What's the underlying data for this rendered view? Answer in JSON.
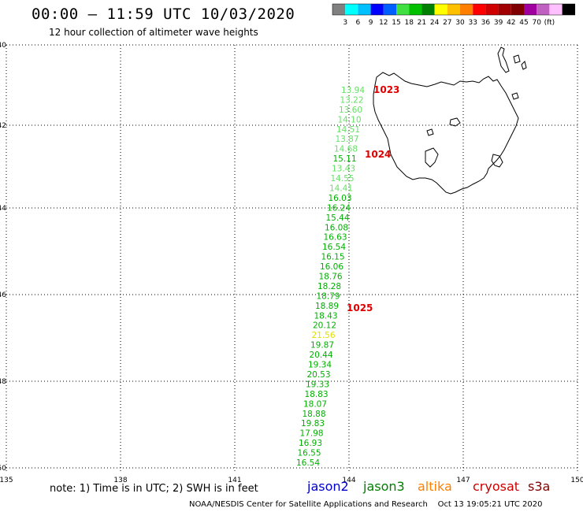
{
  "title": "00:00 – 11:59 UTC 10/03/2020",
  "subtitle": "12 hour collection of altimeter wave heights",
  "colorbar": {
    "colors": [
      "#808080",
      "#00ffff",
      "#00c0ff",
      "#0000ff",
      "#0060ff",
      "#40e040",
      "#00c000",
      "#008000",
      "#ffff00",
      "#ffc000",
      "#ff8000",
      "#ff0000",
      "#d00000",
      "#a00000",
      "#800000",
      "#a000a0",
      "#c060c0",
      "#ffc0ff",
      "#000000"
    ],
    "labels": [
      "3",
      "6",
      "9",
      "12",
      "15",
      "18",
      "21",
      "24",
      "27",
      "30",
      "33",
      "36",
      "39",
      "42",
      "45",
      "70",
      "(ft)"
    ]
  },
  "axes": {
    "lat_labels": [
      "-40",
      "-42",
      "-44",
      "-46",
      "-48",
      "-50"
    ],
    "lon_labels": [
      "135",
      "138",
      "141",
      "144",
      "147",
      "150"
    ]
  },
  "track": {
    "values": [
      "13.94",
      "13.22",
      "13.60",
      "14.10",
      "14.51",
      "13.87",
      "14.68",
      "15.11",
      "13.43",
      "14.55",
      "14.41",
      "16.03",
      "16.24",
      "15.44",
      "16.08",
      "16.63",
      "16.54",
      "16.15",
      "16.06",
      "18.76",
      "18.28",
      "18.79",
      "18.89",
      "18.43",
      "20.12",
      "21.56",
      "19.87",
      "20.44",
      "19.34",
      "20.53",
      "19.33",
      "18.83",
      "18.07",
      "18.88",
      "19.83",
      "17.98",
      "16.93",
      "16.55",
      "16.54"
    ],
    "colors": [
      "#66e066",
      "#66e066",
      "#66e066",
      "#66e066",
      "#66e066",
      "#66e066",
      "#66e066",
      "#00b000",
      "#66e066",
      "#66e066",
      "#66e066",
      "#00b000",
      "#00b000",
      "#00b000",
      "#00b000",
      "#00b000",
      "#00b000",
      "#00b000",
      "#00b000",
      "#00b000",
      "#00b000",
      "#00b000",
      "#00b000",
      "#00b000",
      "#00b000",
      "#e0e000",
      "#00b000",
      "#00b000",
      "#00b000",
      "#00b000",
      "#00b000",
      "#00b000",
      "#00b000",
      "#00b000",
      "#00b000",
      "#00b000",
      "#00b000",
      "#00b000",
      "#00b000"
    ]
  },
  "time_labels": [
    "1023",
    "1024",
    "1025"
  ],
  "footer_note": "note: 1) Time is in UTC; 2) SWH is in feet",
  "satellites": [
    {
      "name": "jason2",
      "color": "#0000cc"
    },
    {
      "name": "jason3",
      "color": "#008000"
    },
    {
      "name": "altika",
      "color": "#ff8000"
    },
    {
      "name": "cryosat",
      "color": "#cc0000"
    },
    {
      "name": "s3a",
      "color": "#800000"
    }
  ],
  "credit": "NOAA/NESDIS Center for Satellite Applications and Research    Oct 13 19:05:21 UTC 2020"
}
